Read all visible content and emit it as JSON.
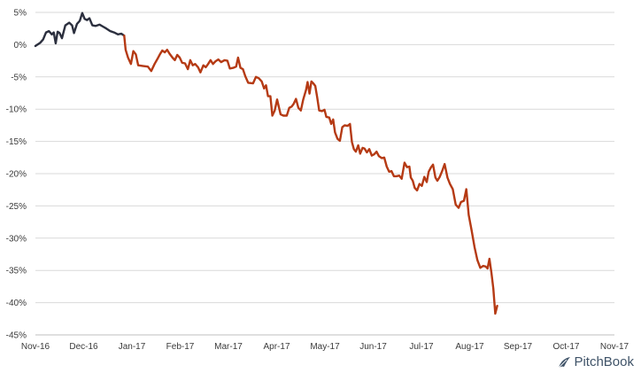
{
  "brand": {
    "name": "PitchBook",
    "icon": "pitchbook-leaf-icon",
    "color": "#3f5368"
  },
  "chart_data": {
    "type": "line",
    "title": "",
    "xlabel": "",
    "ylabel": "",
    "ylim": [
      -45,
      5
    ],
    "xlim": [
      0,
      12
    ],
    "y_ticks": [
      5,
      0,
      -5,
      -10,
      -15,
      -20,
      -25,
      -30,
      -35,
      -40,
      -45
    ],
    "y_tick_labels": [
      "5%",
      "0%",
      "-5%",
      "-10%",
      "-15%",
      "-20%",
      "-25%",
      "-30%",
      "-35%",
      "-40%",
      "-45%"
    ],
    "x_tick_labels": [
      "Nov-16",
      "Dec-16",
      "Jan-17",
      "Feb-17",
      "Mar-17",
      "Apr-17",
      "May-17",
      "Jun-17",
      "Jul-17",
      "Aug-17",
      "Sep-17",
      "Oct-17",
      "Nov-17"
    ],
    "grid": true,
    "legend": "none",
    "series": [
      {
        "color": "#2b2f3e",
        "points": [
          [
            0.0,
            -0.2
          ],
          [
            0.1,
            0.3
          ],
          [
            0.16,
            0.8
          ],
          [
            0.22,
            1.9
          ],
          [
            0.28,
            2.1
          ],
          [
            0.34,
            1.6
          ],
          [
            0.38,
            1.9
          ],
          [
            0.42,
            0.2
          ],
          [
            0.46,
            2.0
          ],
          [
            0.5,
            1.8
          ],
          [
            0.55,
            1.0
          ],
          [
            0.62,
            3.0
          ],
          [
            0.7,
            3.4
          ],
          [
            0.76,
            3.0
          ],
          [
            0.8,
            1.8
          ],
          [
            0.86,
            3.2
          ],
          [
            0.92,
            3.7
          ],
          [
            0.97,
            4.9
          ],
          [
            1.02,
            4.0
          ],
          [
            1.07,
            3.8
          ],
          [
            1.12,
            4.1
          ],
          [
            1.18,
            3.0
          ],
          [
            1.25,
            2.9
          ],
          [
            1.33,
            3.1
          ],
          [
            1.4,
            2.8
          ],
          [
            1.47,
            2.5
          ],
          [
            1.55,
            2.1
          ],
          [
            1.63,
            1.9
          ],
          [
            1.71,
            1.6
          ],
          [
            1.78,
            1.7
          ],
          [
            1.84,
            1.4
          ]
        ]
      },
      {
        "color": "#b53a14",
        "points": [
          [
            1.84,
            1.4
          ],
          [
            1.87,
            -0.8
          ],
          [
            1.92,
            -2.0
          ],
          [
            1.98,
            -3.0
          ],
          [
            2.03,
            -1.0
          ],
          [
            2.08,
            -1.5
          ],
          [
            2.13,
            -3.2
          ],
          [
            2.22,
            -3.3
          ],
          [
            2.33,
            -3.4
          ],
          [
            2.4,
            -4.1
          ],
          [
            2.47,
            -3.0
          ],
          [
            2.53,
            -2.2
          ],
          [
            2.58,
            -1.5
          ],
          [
            2.63,
            -0.9
          ],
          [
            2.68,
            -1.2
          ],
          [
            2.73,
            -0.8
          ],
          [
            2.78,
            -1.4
          ],
          [
            2.84,
            -2.0
          ],
          [
            2.89,
            -2.4
          ],
          [
            2.94,
            -1.6
          ],
          [
            2.99,
            -2.0
          ],
          [
            3.04,
            -2.8
          ],
          [
            3.1,
            -2.9
          ],
          [
            3.16,
            -3.8
          ],
          [
            3.21,
            -2.4
          ],
          [
            3.26,
            -3.2
          ],
          [
            3.31,
            -3.0
          ],
          [
            3.37,
            -3.5
          ],
          [
            3.42,
            -4.3
          ],
          [
            3.48,
            -3.2
          ],
          [
            3.53,
            -3.5
          ],
          [
            3.58,
            -3.0
          ],
          [
            3.63,
            -2.4
          ],
          [
            3.68,
            -3.0
          ],
          [
            3.73,
            -2.6
          ],
          [
            3.79,
            -2.3
          ],
          [
            3.85,
            -2.7
          ],
          [
            3.92,
            -2.4
          ],
          [
            3.98,
            -2.5
          ],
          [
            4.03,
            -3.7
          ],
          [
            4.1,
            -3.6
          ],
          [
            4.16,
            -3.4
          ],
          [
            4.2,
            -2.0
          ],
          [
            4.25,
            -3.6
          ],
          [
            4.3,
            -3.8
          ],
          [
            4.35,
            -4.9
          ],
          [
            4.41,
            -5.9
          ],
          [
            4.51,
            -6.0
          ],
          [
            4.57,
            -5.0
          ],
          [
            4.63,
            -5.2
          ],
          [
            4.69,
            -5.7
          ],
          [
            4.74,
            -6.8
          ],
          [
            4.78,
            -6.3
          ],
          [
            4.82,
            -8.0
          ],
          [
            4.87,
            -8.0
          ],
          [
            4.91,
            -11.0
          ],
          [
            4.96,
            -10.2
          ],
          [
            5.01,
            -8.5
          ],
          [
            5.08,
            -10.8
          ],
          [
            5.14,
            -11.0
          ],
          [
            5.21,
            -11.0
          ],
          [
            5.26,
            -9.8
          ],
          [
            5.31,
            -9.6
          ],
          [
            5.35,
            -9.2
          ],
          [
            5.4,
            -8.4
          ],
          [
            5.45,
            -9.8
          ],
          [
            5.5,
            -10.2
          ],
          [
            5.55,
            -8.5
          ],
          [
            5.61,
            -7.0
          ],
          [
            5.64,
            -5.8
          ],
          [
            5.68,
            -7.6
          ],
          [
            5.72,
            -5.7
          ],
          [
            5.76,
            -6.0
          ],
          [
            5.8,
            -6.4
          ],
          [
            5.84,
            -8.2
          ],
          [
            5.88,
            -10.2
          ],
          [
            5.94,
            -10.3
          ],
          [
            5.99,
            -10.1
          ],
          [
            6.03,
            -11.2
          ],
          [
            6.09,
            -11.3
          ],
          [
            6.13,
            -12.3
          ],
          [
            6.17,
            -11.6
          ],
          [
            6.21,
            -13.6
          ],
          [
            6.26,
            -14.6
          ],
          [
            6.31,
            -14.9
          ],
          [
            6.36,
            -12.8
          ],
          [
            6.41,
            -12.5
          ],
          [
            6.47,
            -12.6
          ],
          [
            6.52,
            -12.3
          ],
          [
            6.56,
            -15.1
          ],
          [
            6.6,
            -16.2
          ],
          [
            6.64,
            -16.6
          ],
          [
            6.69,
            -15.6
          ],
          [
            6.73,
            -16.9
          ],
          [
            6.78,
            -16.0
          ],
          [
            6.82,
            -16.1
          ],
          [
            6.87,
            -16.7
          ],
          [
            6.92,
            -16.2
          ],
          [
            6.97,
            -17.2
          ],
          [
            7.02,
            -17.0
          ],
          [
            7.07,
            -16.6
          ],
          [
            7.12,
            -17.3
          ],
          [
            7.18,
            -17.6
          ],
          [
            7.23,
            -17.5
          ],
          [
            7.28,
            -18.9
          ],
          [
            7.33,
            -19.7
          ],
          [
            7.38,
            -19.6
          ],
          [
            7.43,
            -20.4
          ],
          [
            7.48,
            -20.4
          ],
          [
            7.54,
            -20.3
          ],
          [
            7.59,
            -20.8
          ],
          [
            7.65,
            -18.3
          ],
          [
            7.7,
            -19.0
          ],
          [
            7.75,
            -18.9
          ],
          [
            7.78,
            -20.6
          ],
          [
            7.82,
            -21.1
          ],
          [
            7.86,
            -22.2
          ],
          [
            7.91,
            -22.6
          ],
          [
            7.96,
            -21.6
          ],
          [
            8.01,
            -21.9
          ],
          [
            8.06,
            -20.5
          ],
          [
            8.11,
            -21.3
          ],
          [
            8.15,
            -19.7
          ],
          [
            8.2,
            -19.0
          ],
          [
            8.24,
            -18.6
          ],
          [
            8.29,
            -20.6
          ],
          [
            8.33,
            -21.1
          ],
          [
            8.38,
            -20.5
          ],
          [
            8.43,
            -19.6
          ],
          [
            8.48,
            -18.5
          ],
          [
            8.54,
            -20.6
          ],
          [
            8.59,
            -21.6
          ],
          [
            8.65,
            -22.4
          ],
          [
            8.71,
            -24.8
          ],
          [
            8.77,
            -25.3
          ],
          [
            8.82,
            -24.4
          ],
          [
            8.88,
            -24.2
          ],
          [
            8.93,
            -22.4
          ],
          [
            8.98,
            -26.4
          ],
          [
            9.04,
            -28.8
          ],
          [
            9.1,
            -31.4
          ],
          [
            9.16,
            -33.4
          ],
          [
            9.22,
            -34.6
          ],
          [
            9.28,
            -34.3
          ],
          [
            9.33,
            -34.4
          ],
          [
            9.37,
            -34.7
          ],
          [
            9.41,
            -33.2
          ],
          [
            9.45,
            -35.3
          ],
          [
            9.49,
            -37.8
          ],
          [
            9.53,
            -41.7
          ],
          [
            9.57,
            -40.5
          ]
        ]
      }
    ]
  }
}
